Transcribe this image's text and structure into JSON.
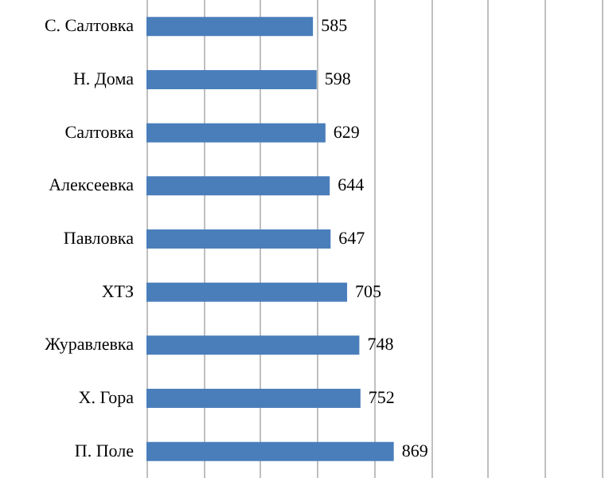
{
  "chart_data": {
    "type": "bar",
    "orientation": "horizontal",
    "categories": [
      "С. Салтовка",
      "Н. Дома",
      "Салтовка",
      "Алексеевка",
      "Павловка",
      "ХТЗ",
      "Журавлевка",
      "Х. Гора",
      "П. Поле"
    ],
    "values": [
      585,
      598,
      629,
      644,
      647,
      705,
      748,
      752,
      869
    ],
    "color": "#4a7ebb",
    "xlim": [
      0,
      1600
    ],
    "xticks": [
      {
        "value": 0,
        "label": null
      },
      {
        "value": 200,
        "label": null
      },
      {
        "value": 400,
        "label": null
      },
      {
        "value": 600,
        "label": null
      },
      {
        "value": 800,
        "label": null
      },
      {
        "value": 1000,
        "label": null
      },
      {
        "value": 1200,
        "label": null
      },
      {
        "value": 1400,
        "label": null
      },
      {
        "value": 1600,
        "label": null
      }
    ],
    "grid": "x",
    "tick_labels": "y",
    "data_labels": true
  }
}
